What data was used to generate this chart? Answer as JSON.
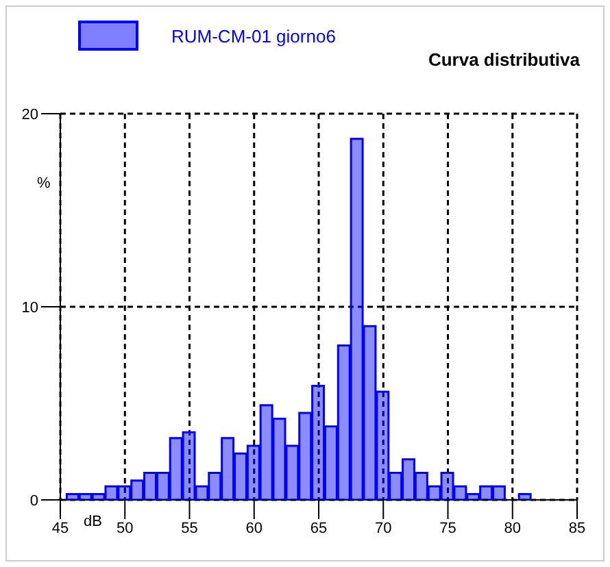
{
  "chart_data": {
    "type": "histogram",
    "title": "Curva distributiva",
    "xlabel": "dB",
    "ylabel": "%",
    "bins": [
      45.5,
      46.5,
      47.5,
      48.5,
      49.5,
      50.5,
      51.5,
      52.5,
      53.5,
      54.5,
      55.5,
      56.5,
      57.5,
      58.5,
      59.5,
      60.5,
      61.5,
      62.5,
      63.5,
      64.5,
      65.5,
      66.5,
      67.5,
      68.5,
      69.5,
      70.5,
      71.5,
      72.5,
      73.5,
      74.5,
      75.5,
      76.5,
      77.5,
      78.5,
      79.5,
      80.5,
      81.5
    ],
    "series": [
      {
        "name": "RUM-CM-01 giorno6",
        "color": "#0000ff",
        "values": [
          0.3,
          0.3,
          0.3,
          0.7,
          0.7,
          1.0,
          1.4,
          1.4,
          3.2,
          3.5,
          0.7,
          1.4,
          3.2,
          2.4,
          2.8,
          4.9,
          4.2,
          2.8,
          4.5,
          5.9,
          3.8,
          8.0,
          18.7,
          9.0,
          5.6,
          1.4,
          2.1,
          1.4,
          0.7,
          1.4,
          0.7,
          0.3,
          0.7,
          0.7,
          0,
          0.3
        ]
      }
    ],
    "xlim": [
      45,
      85
    ],
    "xticks": [
      45,
      50,
      55,
      60,
      65,
      70,
      75,
      80,
      85
    ],
    "ylim": [
      0,
      20
    ],
    "yticks": [
      0,
      10,
      20
    ],
    "grid": true,
    "legend": "top left"
  }
}
